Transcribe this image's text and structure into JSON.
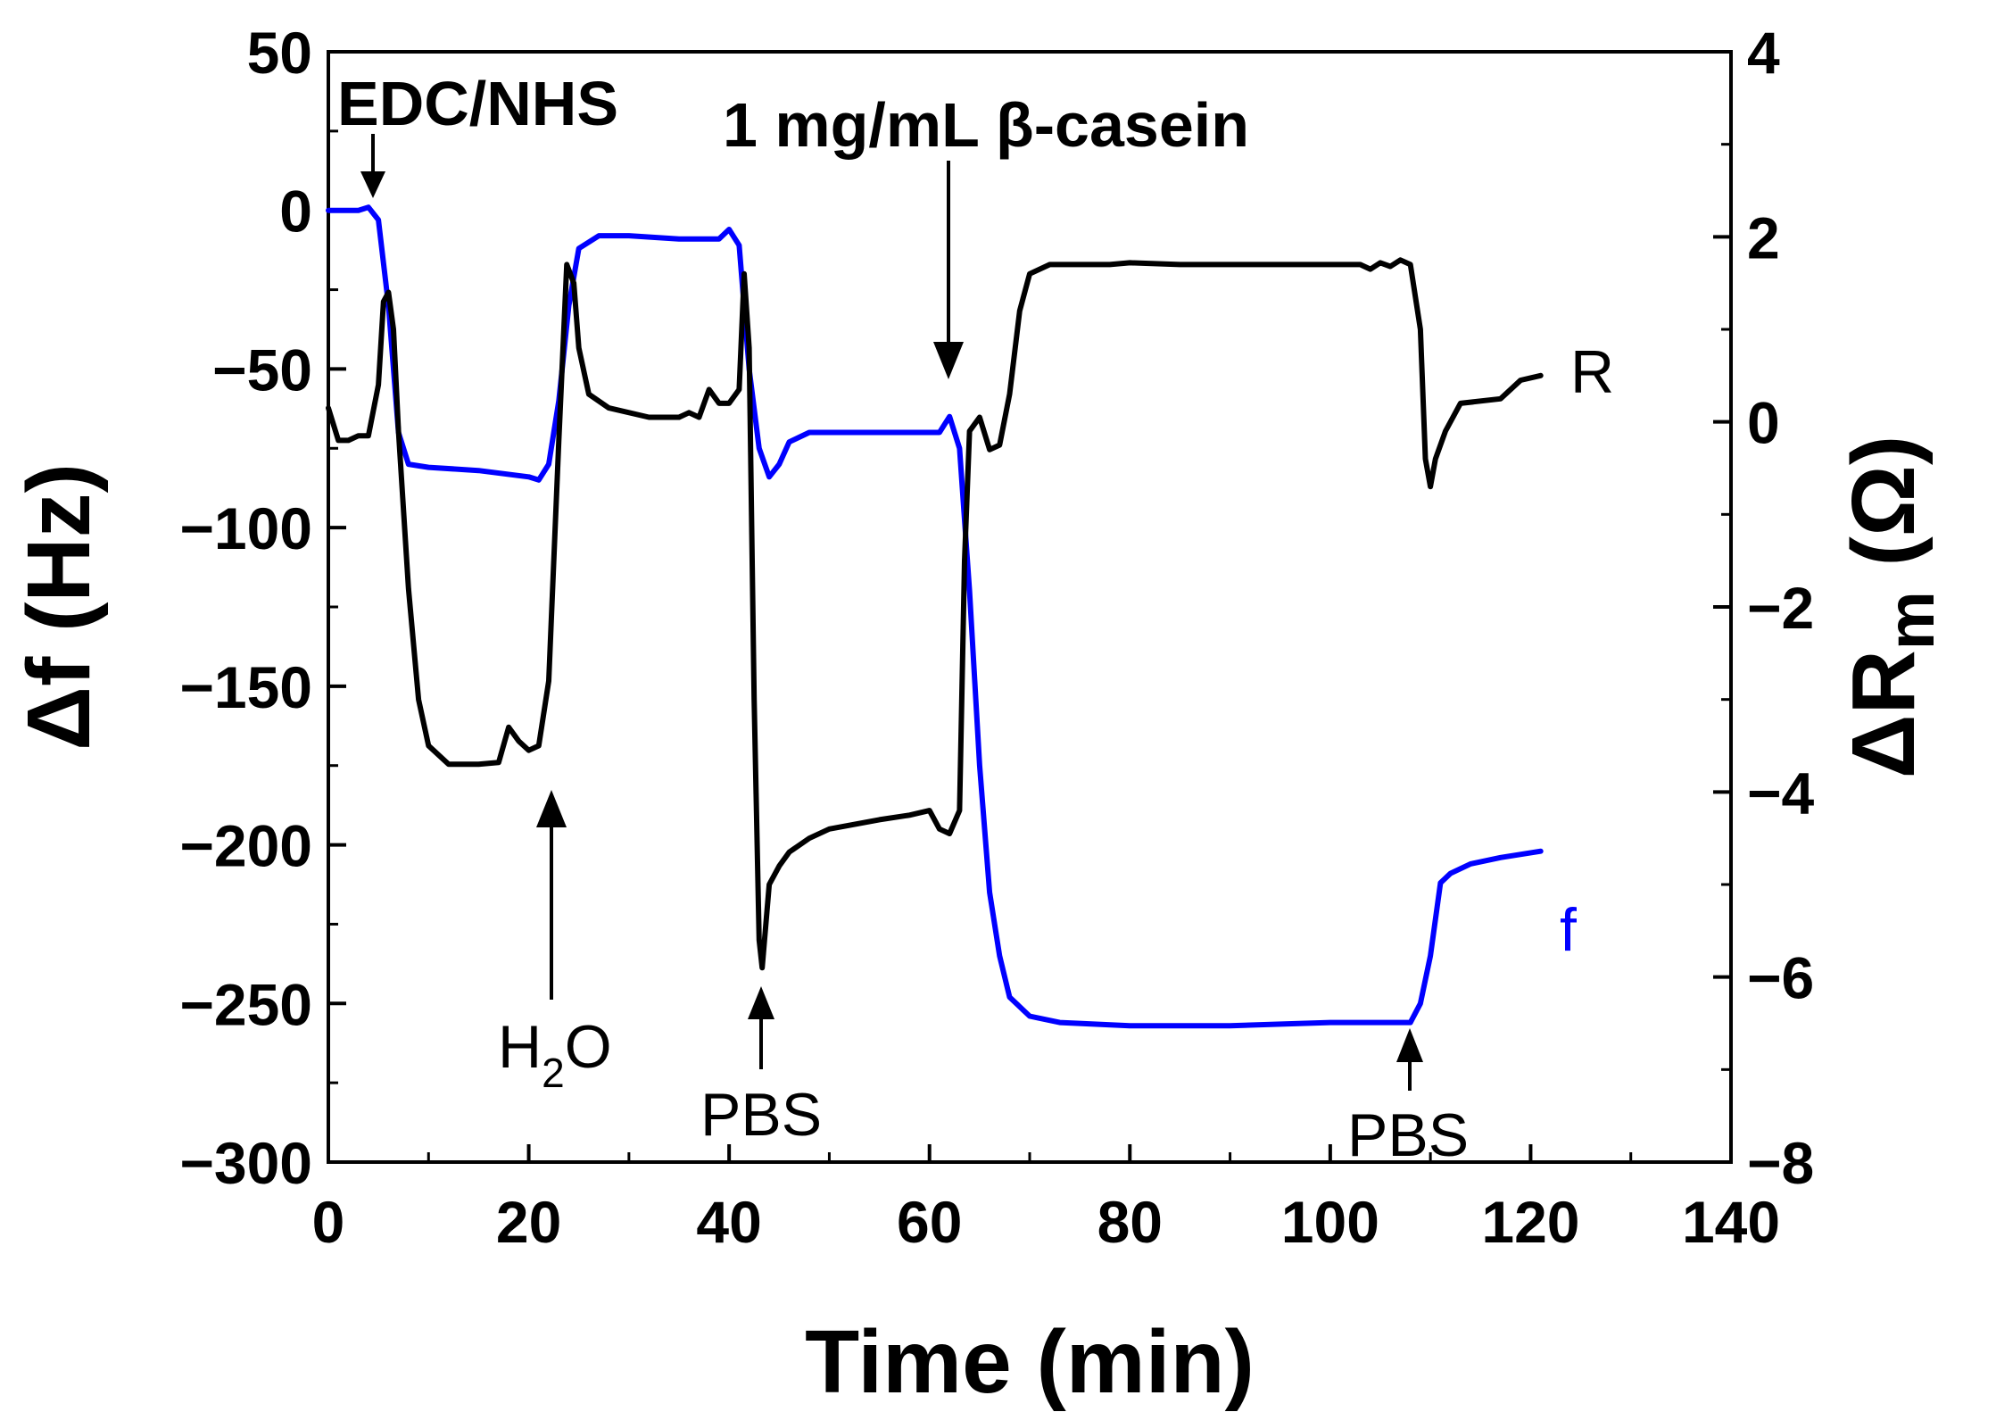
{
  "chart_data": {
    "type": "line",
    "xlabel": "Time (min)",
    "ylabel": "Δf (Hz)",
    "y2label_main": "ΔR",
    "y2label_sub": "m",
    "y2label_unit": " (Ω)",
    "xlim": [
      0,
      140
    ],
    "ylim": [
      -300,
      50
    ],
    "y2lim": [
      -8,
      4
    ],
    "x_ticks": [
      0,
      20,
      40,
      60,
      80,
      100,
      120,
      140
    ],
    "y_ticks": [
      50,
      0,
      -50,
      -100,
      -150,
      -200,
      -250,
      -300
    ],
    "y2_ticks": [
      4,
      2,
      0,
      -2,
      -4,
      -6,
      -8
    ],
    "x_tick_labels": [
      "0",
      "20",
      "40",
      "60",
      "80",
      "100",
      "120",
      "140"
    ],
    "y_tick_labels": [
      "50",
      "0",
      "−50",
      "−100",
      "−150",
      "−200",
      "−250",
      "−300"
    ],
    "y2_tick_labels": [
      "4",
      "2",
      "0",
      "−2",
      "−4",
      "−6",
      "−8"
    ],
    "grid": false,
    "series": [
      {
        "name": "f",
        "axis": "left",
        "color": "#0000ff",
        "points": [
          [
            0,
            0
          ],
          [
            3,
            0
          ],
          [
            4,
            1
          ],
          [
            5,
            -3
          ],
          [
            6,
            -30
          ],
          [
            7,
            -70
          ],
          [
            8,
            -80
          ],
          [
            10,
            -81
          ],
          [
            15,
            -82
          ],
          [
            20,
            -84
          ],
          [
            21,
            -85
          ],
          [
            22,
            -80
          ],
          [
            23,
            -60
          ],
          [
            24,
            -30
          ],
          [
            25,
            -12
          ],
          [
            27,
            -8
          ],
          [
            30,
            -8
          ],
          [
            35,
            -9
          ],
          [
            39,
            -9
          ],
          [
            40,
            -6
          ],
          [
            41,
            -11
          ],
          [
            42,
            -50
          ],
          [
            43,
            -75
          ],
          [
            44,
            -84
          ],
          [
            45,
            -80
          ],
          [
            46,
            -73
          ],
          [
            48,
            -70
          ],
          [
            52,
            -70
          ],
          [
            58,
            -70
          ],
          [
            61,
            -70
          ],
          [
            62,
            -65
          ],
          [
            63,
            -75
          ],
          [
            64,
            -120
          ],
          [
            65,
            -175
          ],
          [
            66,
            -215
          ],
          [
            67,
            -235
          ],
          [
            68,
            -248
          ],
          [
            70,
            -254
          ],
          [
            73,
            -256
          ],
          [
            80,
            -257
          ],
          [
            90,
            -257
          ],
          [
            100,
            -256
          ],
          [
            106,
            -256
          ],
          [
            108,
            -256
          ],
          [
            109,
            -250
          ],
          [
            110,
            -235
          ],
          [
            111,
            -212
          ],
          [
            112,
            -209
          ],
          [
            114,
            -206
          ],
          [
            117,
            -204
          ],
          [
            121,
            -202
          ]
        ]
      },
      {
        "name": "R",
        "axis": "right",
        "color": "#000000",
        "points": [
          [
            0,
            0.15
          ],
          [
            1,
            -0.2
          ],
          [
            2,
            -0.2
          ],
          [
            3,
            -0.15
          ],
          [
            4,
            -0.15
          ],
          [
            5,
            0.4
          ],
          [
            5.5,
            1.3
          ],
          [
            6,
            1.4
          ],
          [
            6.5,
            1.0
          ],
          [
            7,
            -0.1
          ],
          [
            8,
            -1.8
          ],
          [
            9,
            -3.0
          ],
          [
            10,
            -3.5
          ],
          [
            12,
            -3.7
          ],
          [
            15,
            -3.7
          ],
          [
            17,
            -3.68
          ],
          [
            18,
            -3.3
          ],
          [
            19,
            -3.45
          ],
          [
            20,
            -3.55
          ],
          [
            21,
            -3.5
          ],
          [
            22,
            -2.8
          ],
          [
            23,
            -0.2
          ],
          [
            23.8,
            1.7
          ],
          [
            24.5,
            1.5
          ],
          [
            25,
            0.8
          ],
          [
            26,
            0.3
          ],
          [
            28,
            0.15
          ],
          [
            32,
            0.05
          ],
          [
            35,
            0.05
          ],
          [
            36,
            0.1
          ],
          [
            37,
            0.05
          ],
          [
            38,
            0.35
          ],
          [
            39,
            0.2
          ],
          [
            40,
            0.2
          ],
          [
            41,
            0.35
          ],
          [
            41.5,
            1.6
          ],
          [
            42,
            0.8
          ],
          [
            42.5,
            -3.0
          ],
          [
            43,
            -5.6
          ],
          [
            43.3,
            -5.9
          ],
          [
            44,
            -5.0
          ],
          [
            45,
            -4.8
          ],
          [
            46,
            -4.65
          ],
          [
            48,
            -4.5
          ],
          [
            50,
            -4.4
          ],
          [
            55,
            -4.3
          ],
          [
            58,
            -4.25
          ],
          [
            60,
            -4.2
          ],
          [
            61,
            -4.4
          ],
          [
            62,
            -4.45
          ],
          [
            63,
            -4.2
          ],
          [
            63.5,
            -1.5
          ],
          [
            64,
            -0.1
          ],
          [
            65,
            0.05
          ],
          [
            66,
            -0.3
          ],
          [
            67,
            -0.25
          ],
          [
            68,
            0.3
          ],
          [
            69,
            1.2
          ],
          [
            70,
            1.6
          ],
          [
            72,
            1.7
          ],
          [
            78,
            1.7
          ],
          [
            80,
            1.72
          ],
          [
            85,
            1.7
          ],
          [
            90,
            1.7
          ],
          [
            100,
            1.7
          ],
          [
            103,
            1.7
          ],
          [
            104,
            1.65
          ],
          [
            105,
            1.72
          ],
          [
            106,
            1.68
          ],
          [
            107,
            1.75
          ],
          [
            108,
            1.7
          ],
          [
            109,
            1.0
          ],
          [
            109.5,
            -0.4
          ],
          [
            110,
            -0.7
          ],
          [
            110.5,
            -0.4
          ],
          [
            111.5,
            -0.1
          ],
          [
            113,
            0.2
          ],
          [
            117,
            0.25
          ],
          [
            119,
            0.45
          ],
          [
            121,
            0.5
          ]
        ]
      }
    ],
    "annotations": {
      "edc": "EDC/NHS",
      "casein": "1 mg/mL β-casein",
      "h2o_main": "H",
      "h2o_sub": "2",
      "h2o_end": "O",
      "pbs1": "PBS",
      "pbs2": "PBS",
      "series_label_r": "R",
      "series_label_f": "f"
    }
  }
}
